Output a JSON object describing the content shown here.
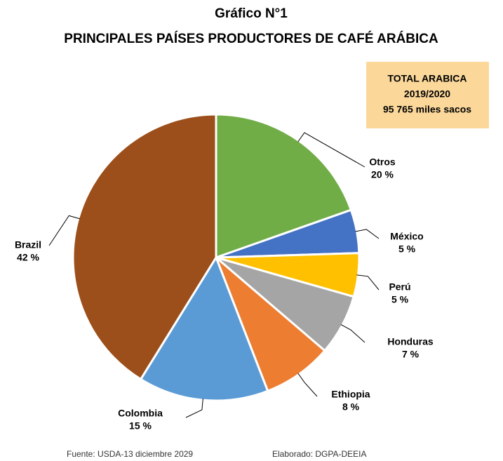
{
  "chart_data": {
    "type": "pie",
    "title": "Gráfico N°1",
    "subtitle": "PRINCIPALES PAÍSES PRODUCTORES DE CAFÉ ARÁBICA",
    "categories": [
      "Otros",
      "México",
      "Perú",
      "Honduras",
      "Ethiopia",
      "Colombia",
      "Brazil"
    ],
    "values": [
      20,
      5,
      5,
      7,
      8,
      15,
      42
    ],
    "value_labels": [
      "20 %",
      "5 %",
      "5 %",
      "7 %",
      "8 %",
      "15 %",
      "42 %"
    ],
    "colors": [
      "#70ad47",
      "#4472c4",
      "#ffc000",
      "#a5a5a5",
      "#ed7d31",
      "#5b9bd5",
      "#9c4f1a"
    ],
    "annotations": [
      "TOTAL ARABICA",
      "2019/2020",
      "95 765 miles sacos"
    ],
    "source": "Fuente: USDA-13 diciembre 2029",
    "credit": "Elaborado: DGPA-DEEIA"
  }
}
